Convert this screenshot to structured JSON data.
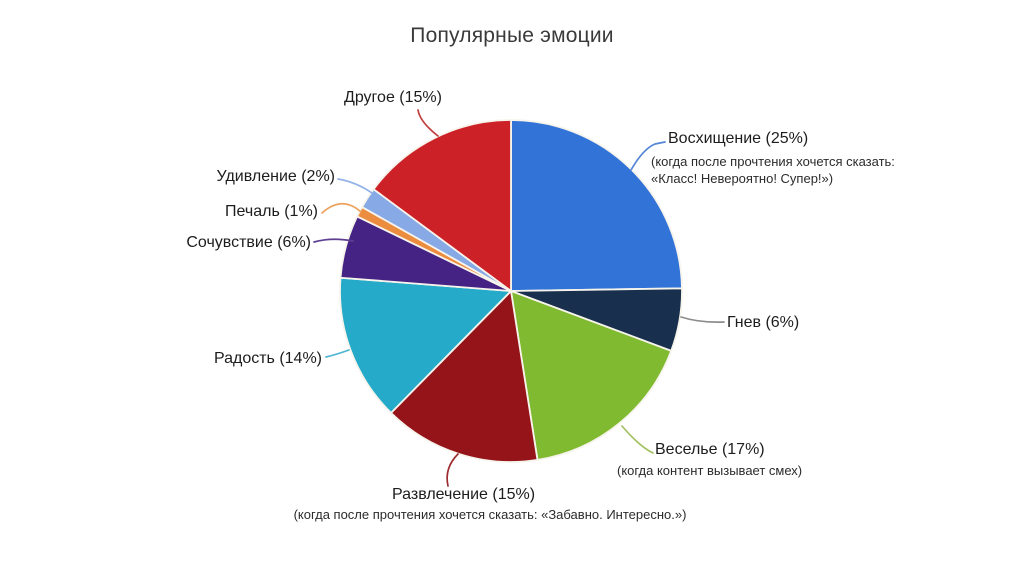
{
  "title": "Популярные эмоции",
  "chart_data": {
    "type": "pie",
    "title": "Популярные эмоции",
    "unit": "%",
    "start_angle_deg": 0,
    "direction": "clockwise",
    "legend": "none",
    "slices": [
      {
        "name": "Восхищение",
        "pct": 25,
        "display": "Восхищение (25%)",
        "subtitle": "(когда после прочтения хочется сказать:\n«Класс! Невероятно! Супер!»)",
        "color": "#3273d8",
        "leader_color": "#5585d6"
      },
      {
        "name": "Гнев",
        "pct": 6,
        "display": "Гнев (6%)",
        "color": "#18304e",
        "leader_color": "#8c8c8c"
      },
      {
        "name": "Веселье",
        "pct": 17,
        "display": "Веселье (17%)",
        "subtitle": "(когда контент вызывает смех)",
        "color": "#7fba30",
        "leader_color": "#a3c162"
      },
      {
        "name": "Развлечение",
        "pct": 15,
        "display": "Развлечение (15%)",
        "subtitle": "(когда после прочтения хочется сказать: «Забавно. Интересно.»)",
        "color": "#951419",
        "leader_color": "#9c2a2e"
      },
      {
        "name": "Радость",
        "pct": 14,
        "display": "Радость (14%)",
        "color": "#25abc9",
        "leader_color": "#4db4d1"
      },
      {
        "name": "Сочувствие",
        "pct": 6,
        "display": "Сочувствие (6%)",
        "color": "#452384",
        "leader_color": "#5d3f92"
      },
      {
        "name": "Печаль",
        "pct": 1,
        "display": "Печаль (1%)",
        "color": "#ec8c3e",
        "leader_color": "#eda25e"
      },
      {
        "name": "Удивление",
        "pct": 2,
        "display": "Удивление (2%)",
        "color": "#87a9e6",
        "leader_color": "#93b2e8"
      },
      {
        "name": "Другое",
        "pct": 15,
        "display": "Другое (15%)",
        "color": "#cd2128",
        "leader_color": "#c14040"
      }
    ]
  }
}
